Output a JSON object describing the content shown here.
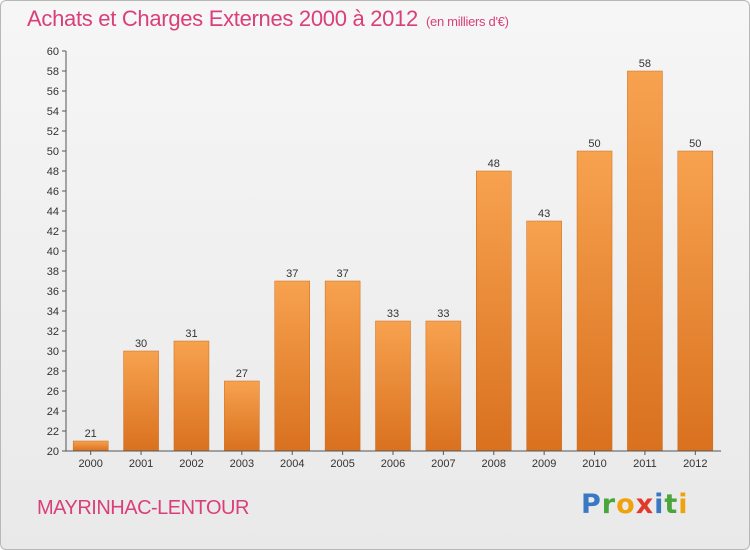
{
  "header": {
    "title": "Achats et Charges Externes 2000 à 2012",
    "subtitle": "(en milliers d'€)"
  },
  "footer": {
    "place": "MAYRINHAC-LENTOUR",
    "logo_letters": [
      "P",
      "r",
      "o",
      "x",
      "i",
      "t",
      "i"
    ],
    "logo_colors": [
      "#3a78c3",
      "#49a53c",
      "#f0a20c",
      "#e23a2a",
      "#3a78c3",
      "#49a53c",
      "#f0a20c"
    ]
  },
  "colors": {
    "bar_top": "#f7a24f",
    "bar_bottom": "#d9711f",
    "bar_edge": "#c96a1c",
    "title": "#d9407a"
  },
  "chart_data": {
    "type": "bar",
    "title": "Achats et Charges Externes 2000 à 2012",
    "subtitle": "(en milliers d'€)",
    "categories": [
      "2000",
      "2001",
      "2002",
      "2003",
      "2004",
      "2005",
      "2006",
      "2007",
      "2008",
      "2009",
      "2010",
      "2011",
      "2012"
    ],
    "values": [
      21,
      30,
      31,
      27,
      37,
      37,
      33,
      33,
      48,
      43,
      50,
      58,
      50
    ],
    "ylim": [
      20,
      60
    ],
    "ytick_step": 2,
    "grid": false,
    "xlabel": "",
    "ylabel": ""
  }
}
